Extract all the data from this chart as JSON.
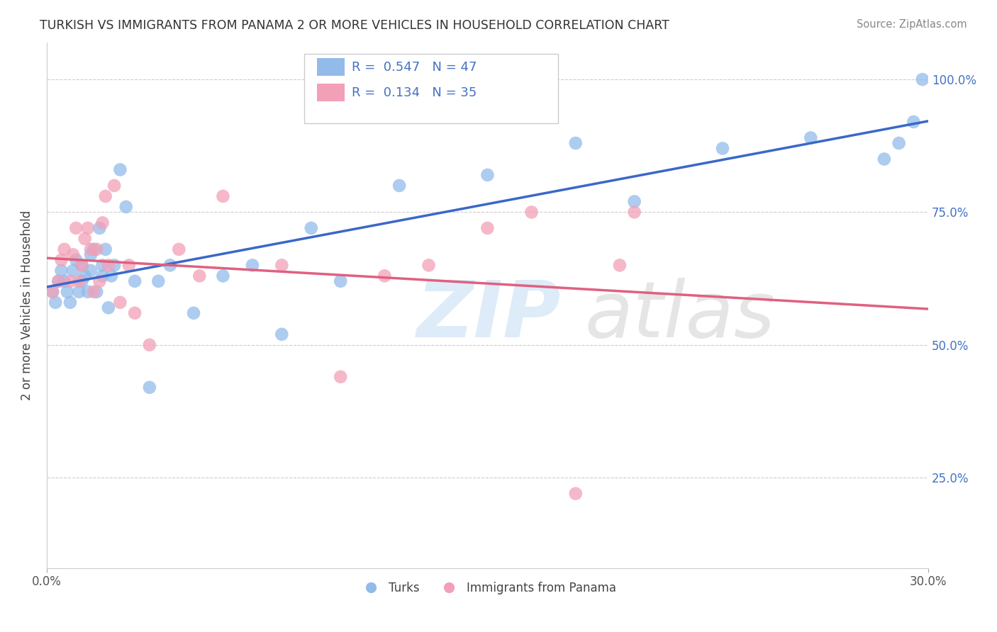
{
  "title": "TURKISH VS IMMIGRANTS FROM PANAMA 2 OR MORE VEHICLES IN HOUSEHOLD CORRELATION CHART",
  "source": "Source: ZipAtlas.com",
  "ylabel": "2 or more Vehicles in Household",
  "ytick_vals": [
    0.25,
    0.5,
    0.75,
    1.0
  ],
  "xmin": 0.0,
  "xmax": 0.3,
  "ymin": 0.08,
  "ymax": 1.07,
  "turks_color": "#92bbea",
  "panama_color": "#f2a0b8",
  "turks_line_color": "#3a68c8",
  "panama_line_color": "#e06080",
  "turks_x": [
    0.002,
    0.003,
    0.004,
    0.005,
    0.006,
    0.007,
    0.008,
    0.009,
    0.01,
    0.011,
    0.012,
    0.012,
    0.013,
    0.014,
    0.015,
    0.015,
    0.016,
    0.017,
    0.018,
    0.019,
    0.019,
    0.02,
    0.021,
    0.022,
    0.023,
    0.025,
    0.027,
    0.03,
    0.035,
    0.038,
    0.042,
    0.05,
    0.06,
    0.07,
    0.08,
    0.09,
    0.1,
    0.12,
    0.15,
    0.18,
    0.2,
    0.23,
    0.26,
    0.285,
    0.29,
    0.295,
    0.298
  ],
  "turks_y": [
    0.6,
    0.58,
    0.62,
    0.64,
    0.62,
    0.6,
    0.58,
    0.64,
    0.66,
    0.6,
    0.62,
    0.65,
    0.63,
    0.6,
    0.67,
    0.64,
    0.68,
    0.6,
    0.72,
    0.63,
    0.65,
    0.68,
    0.57,
    0.63,
    0.65,
    0.83,
    0.76,
    0.62,
    0.42,
    0.62,
    0.65,
    0.56,
    0.63,
    0.65,
    0.52,
    0.72,
    0.62,
    0.8,
    0.82,
    0.88,
    0.77,
    0.87,
    0.89,
    0.85,
    0.88,
    0.92,
    1.0
  ],
  "panama_x": [
    0.002,
    0.004,
    0.005,
    0.006,
    0.008,
    0.009,
    0.01,
    0.011,
    0.012,
    0.013,
    0.014,
    0.015,
    0.016,
    0.017,
    0.018,
    0.019,
    0.02,
    0.021,
    0.023,
    0.025,
    0.028,
    0.03,
    0.035,
    0.045,
    0.052,
    0.06,
    0.08,
    0.1,
    0.115,
    0.13,
    0.15,
    0.165,
    0.18,
    0.195,
    0.2
  ],
  "panama_y": [
    0.6,
    0.62,
    0.66,
    0.68,
    0.62,
    0.67,
    0.72,
    0.62,
    0.65,
    0.7,
    0.72,
    0.68,
    0.6,
    0.68,
    0.62,
    0.73,
    0.78,
    0.65,
    0.8,
    0.58,
    0.65,
    0.56,
    0.5,
    0.68,
    0.63,
    0.78,
    0.65,
    0.44,
    0.63,
    0.65,
    0.72,
    0.75,
    0.22,
    0.65,
    0.75
  ]
}
